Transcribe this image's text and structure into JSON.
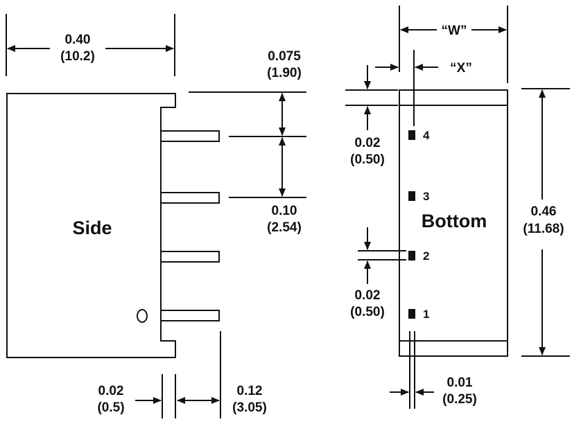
{
  "side_view": {
    "label": "Side",
    "width_dim": {
      "inch": "0.40",
      "mm": "(10.2)"
    },
    "top_offset_dim": {
      "inch": "0.075",
      "mm": "(1.90)"
    },
    "pitch_dim": {
      "inch": "0.10",
      "mm": "(2.54)"
    },
    "pin_thickness_dim": {
      "inch": "0.02",
      "mm": "(0.5)"
    },
    "pin_length_dim": {
      "inch": "0.12",
      "mm": "(3.05)"
    },
    "pin1_marker": "O"
  },
  "bottom_view": {
    "label": "Bottom",
    "width_dim": "“W”",
    "pin_offset_dim": "“X”",
    "height_dim": {
      "inch": "0.46",
      "mm": "(11.68)"
    },
    "upper_band_dim": {
      "inch": "0.02",
      "mm": "(0.50)"
    },
    "pin_size_dim": {
      "inch": "0.02",
      "mm": "(0.50)"
    },
    "pin_width_dim": {
      "inch": "0.01",
      "mm": "(0.25)"
    },
    "pins": [
      "4",
      "3",
      "2",
      "1"
    ]
  }
}
